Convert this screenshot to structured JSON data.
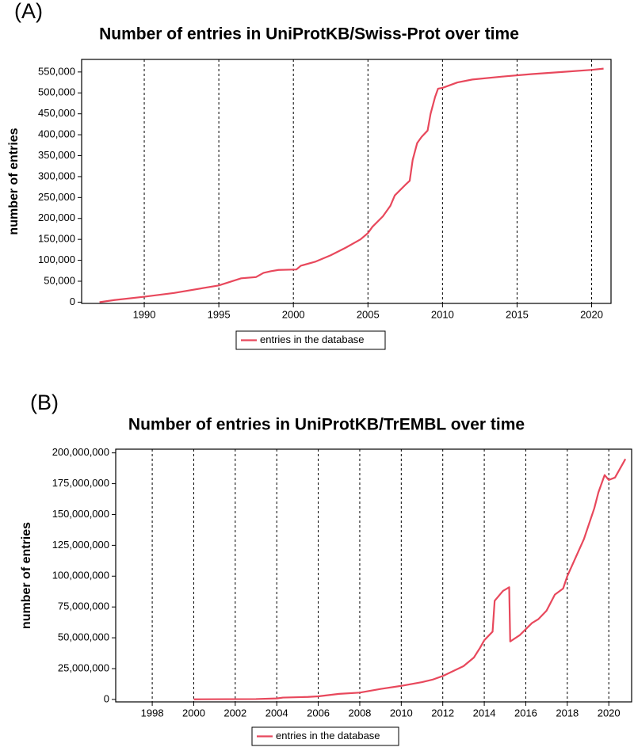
{
  "chart_data": [
    {
      "type": "line",
      "panel_label": "(A)",
      "title": "Number of entries in UniProtKB/Swiss-Prot over time",
      "ylabel": "number of entries",
      "xlim": [
        1985.8,
        2021.3
      ],
      "xticks": [
        1990,
        1995,
        2000,
        2005,
        2010,
        2015,
        2020
      ],
      "ylim": [
        -3000,
        580000
      ],
      "yticks": [
        {
          "value": 0,
          "label": "0"
        },
        {
          "value": 50000,
          "label": "50,000"
        },
        {
          "value": 100000,
          "label": "100,000"
        },
        {
          "value": 150000,
          "label": "150,000"
        },
        {
          "value": 200000,
          "label": "200,000"
        },
        {
          "value": 250000,
          "label": "250,000"
        },
        {
          "value": 300000,
          "label": "300,000"
        },
        {
          "value": 350000,
          "label": "350,000"
        },
        {
          "value": 400000,
          "label": "400,000"
        },
        {
          "value": 450000,
          "label": "450,000"
        },
        {
          "value": 500000,
          "label": "500,000"
        },
        {
          "value": 550000,
          "label": "550,000"
        }
      ],
      "grid": true,
      "legend": "bottom",
      "x": [
        1987,
        1988,
        1990,
        1992,
        1995,
        1996.5,
        1997.5,
        1998,
        1998.5,
        1999,
        2000.2,
        2000.5,
        2001.5,
        2002.5,
        2003.5,
        2004.5,
        2005,
        2005.3,
        2006,
        2006.5,
        2006.8,
        2007.5,
        2007.8,
        2008,
        2008.3,
        2008.6,
        2009,
        2009.2,
        2009.5,
        2009.7,
        2010,
        2011,
        2012,
        2014,
        2016,
        2018,
        2020,
        2020.8
      ],
      "series": [
        {
          "name": "entries in the database",
          "color": "#e8485c",
          "values": [
            0,
            5000,
            13000,
            22000,
            40000,
            57000,
            60000,
            70000,
            74000,
            77000,
            78000,
            87000,
            97000,
            112000,
            130000,
            150000,
            165000,
            180000,
            205000,
            230000,
            255000,
            280000,
            290000,
            340000,
            380000,
            395000,
            410000,
            450000,
            490000,
            510000,
            512000,
            525000,
            532000,
            539000,
            545000,
            550000,
            555000,
            558000
          ]
        }
      ]
    },
    {
      "type": "line",
      "panel_label": "(B)",
      "title": "Number of entries in UniProtKB/TrEMBL over time",
      "ylabel": "number of entries",
      "xlim": [
        1996.24,
        2021.1
      ],
      "xticks": [
        1998,
        2000,
        2002,
        2004,
        2006,
        2008,
        2010,
        2012,
        2014,
        2016,
        2018,
        2020
      ],
      "ylim": [
        -2000000,
        203000000
      ],
      "yticks": [
        {
          "value": 0,
          "label": "0"
        },
        {
          "value": 25000000,
          "label": "25,000,000"
        },
        {
          "value": 50000000,
          "label": "50,000,000"
        },
        {
          "value": 75000000,
          "label": "75,000,000"
        },
        {
          "value": 100000000,
          "label": "100,000,000"
        },
        {
          "value": 125000000,
          "label": "125,000,000"
        },
        {
          "value": 150000000,
          "label": "150,000,000"
        },
        {
          "value": 175000000,
          "label": "175,000,000"
        },
        {
          "value": 200000000,
          "label": "200,000,000"
        }
      ],
      "grid": true,
      "legend": "bottom",
      "x": [
        2000,
        2003,
        2004,
        2004.3,
        2005.5,
        2006,
        2007,
        2008,
        2009,
        2010,
        2011,
        2011.5,
        2012,
        2012.5,
        2013,
        2013.5,
        2013.8,
        2014,
        2014.4,
        2014.5,
        2014.9,
        2015.2,
        2015.25,
        2015.7,
        2016,
        2016.3,
        2016.6,
        2017,
        2017.4,
        2017.8,
        2018,
        2018.4,
        2018.8,
        2019,
        2019.3,
        2019.5,
        2019.8,
        2020,
        2020.3,
        2020.8
      ],
      "series": [
        {
          "name": "entries in the database",
          "color": "#e8485c",
          "values": [
            100000,
            300000,
            800000,
            1500000,
            2000000,
            2500000,
            4500000,
            5500000,
            8500000,
            11000000,
            14000000,
            16000000,
            19000000,
            23000000,
            27000000,
            34000000,
            42000000,
            48000000,
            55000000,
            80000000,
            88000000,
            91000000,
            47000000,
            52000000,
            57000000,
            62000000,
            65000000,
            72000000,
            85000000,
            90000000,
            100000000,
            115000000,
            130000000,
            140000000,
            155000000,
            168000000,
            182000000,
            178000000,
            180000000,
            195000000
          ]
        }
      ]
    }
  ]
}
